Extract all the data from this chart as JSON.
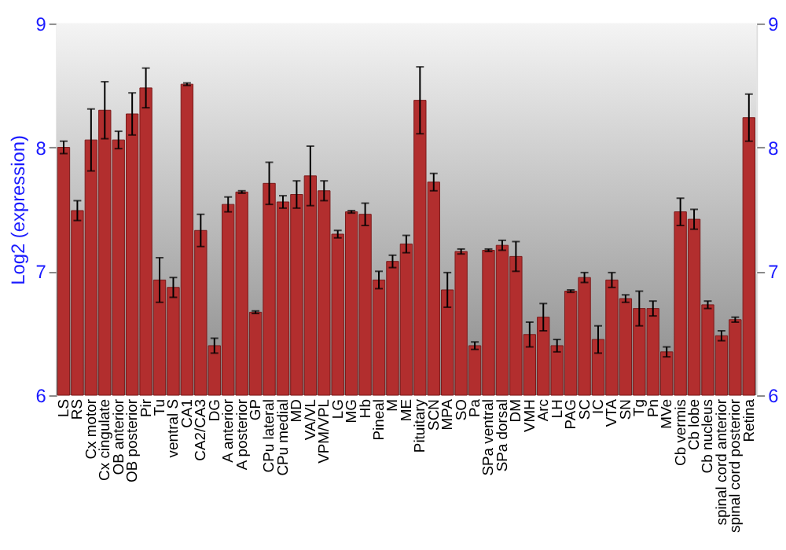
{
  "chart_data": {
    "type": "bar",
    "ylabel": "Log2 (expression)",
    "categories": [
      "LS",
      "RS",
      "Cx motor",
      "Cx cingulate",
      "OB anterior",
      "OB posterior",
      "Pir",
      "Tu",
      "ventral S",
      "CA1",
      "CA2/CA3",
      "DG",
      "A anterior",
      "A posterior",
      "GP",
      "CPu lateral",
      "CPu medial",
      "MD",
      "VA/VL",
      "VPM/VPL",
      "LG",
      "MG",
      "Hb",
      "Pineal",
      "M",
      "ME",
      "Pituitary",
      "SCN",
      "MPA",
      "SO",
      "Pa",
      "SPa ventral",
      "SPa dorsal",
      "DM",
      "VMH",
      "Arc",
      "LH",
      "PAG",
      "SC",
      "IC",
      "VTA",
      "SN",
      "Tg",
      "Pn",
      "MVe",
      "Cb vermis",
      "Cb lobe",
      "Cb nucleus",
      "spinal cord anterior",
      "spinal cord posterior",
      "Retina"
    ],
    "values": [
      8.0,
      7.49,
      8.06,
      8.3,
      8.06,
      8.27,
      8.48,
      6.93,
      6.87,
      8.51,
      7.33,
      6.4,
      7.54,
      7.64,
      6.67,
      7.71,
      7.56,
      7.62,
      7.77,
      7.65,
      7.3,
      7.48,
      7.46,
      6.93,
      7.08,
      7.22,
      8.38,
      7.72,
      6.85,
      7.16,
      6.4,
      7.17,
      7.21,
      7.12,
      6.49,
      6.63,
      6.4,
      6.84,
      6.95,
      6.45,
      6.93,
      6.78,
      6.7,
      6.7,
      6.35,
      7.48,
      7.42,
      6.73,
      6.48,
      6.61,
      8.24
    ],
    "errors": [
      0.05,
      0.08,
      0.25,
      0.23,
      0.07,
      0.17,
      0.16,
      0.18,
      0.08,
      0.01,
      0.13,
      0.06,
      0.06,
      0.01,
      0.01,
      0.17,
      0.05,
      0.11,
      0.24,
      0.08,
      0.03,
      0.01,
      0.09,
      0.07,
      0.05,
      0.07,
      0.27,
      0.07,
      0.14,
      0.02,
      0.03,
      0.01,
      0.04,
      0.12,
      0.1,
      0.11,
      0.05,
      0.01,
      0.04,
      0.11,
      0.06,
      0.03,
      0.14,
      0.06,
      0.04,
      0.11,
      0.08,
      0.03,
      0.04,
      0.02,
      0.19
    ],
    "color": "#b22e2e",
    "ylim": [
      6,
      9
    ],
    "yticks": [
      6,
      7,
      8,
      9
    ],
    "y2lim": [
      6,
      9
    ],
    "y2ticks": [
      6,
      7,
      8,
      9
    ],
    "grid": "y"
  }
}
